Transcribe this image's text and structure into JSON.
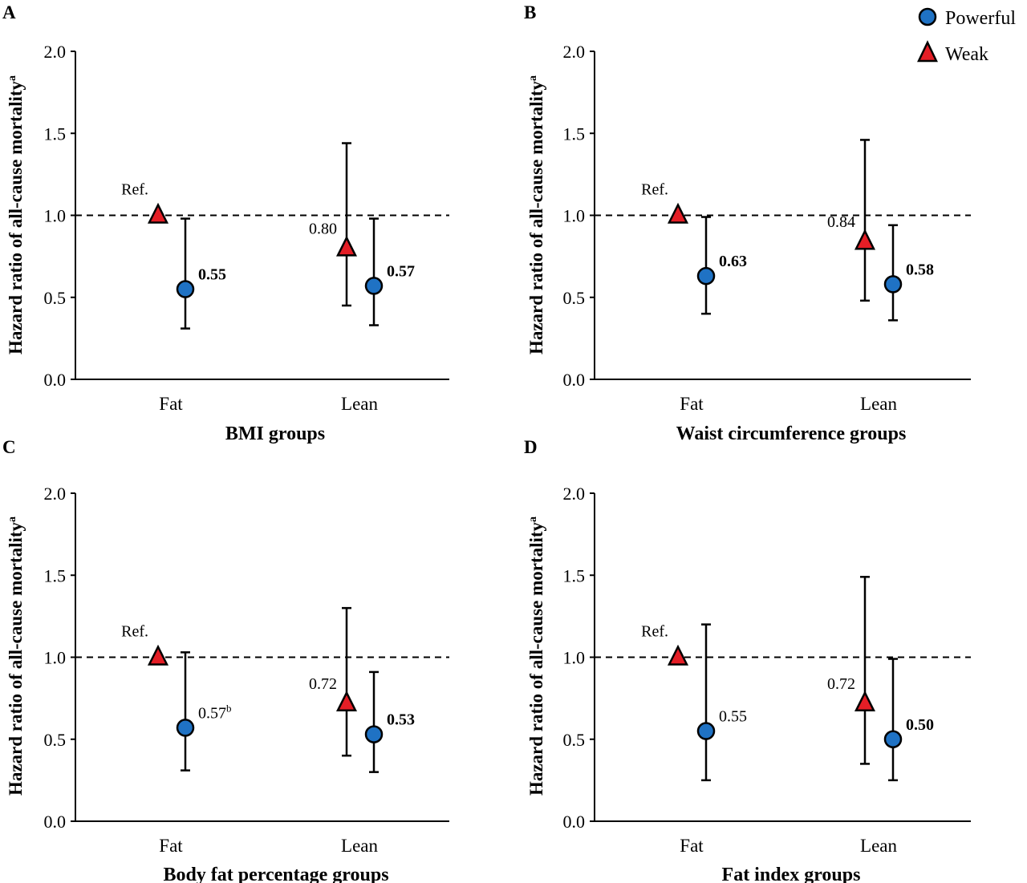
{
  "legend": [
    {
      "name": "Powerful",
      "marker": "circle",
      "color": "#1f72c4"
    },
    {
      "name": "Weak",
      "marker": "triangle",
      "color": "#e41e26"
    }
  ],
  "reference_label": "Ref.",
  "colors": {
    "powerful": "#1f72c4",
    "weak": "#e41e26",
    "stroke": "#000000"
  },
  "chart_data": [
    {
      "panel": "A",
      "type": "scatter",
      "xlabel": "BMI groups",
      "ylabel": "Hazard ratio of all-cause mortality",
      "ylabel_superscript": "a",
      "ylim": [
        0,
        2
      ],
      "yticks": [
        "0.0",
        "0.5",
        "1.0",
        "1.5",
        "2.0"
      ],
      "categories": [
        "Fat",
        "Lean"
      ],
      "reference_line": 1.0,
      "series": [
        {
          "name": "Weak",
          "points": [
            {
              "category": "Fat",
              "value": 1.0,
              "lower": null,
              "upper": null,
              "label": "Ref.",
              "bold": false
            },
            {
              "category": "Lean",
              "value": 0.8,
              "lower": 0.45,
              "upper": 1.44,
              "label": "0.80",
              "bold": false
            }
          ]
        },
        {
          "name": "Powerful",
          "points": [
            {
              "category": "Fat",
              "value": 0.55,
              "lower": 0.31,
              "upper": 0.98,
              "label": "0.55",
              "bold": true
            },
            {
              "category": "Lean",
              "value": 0.57,
              "lower": 0.33,
              "upper": 0.98,
              "label": "0.57",
              "bold": true
            }
          ]
        }
      ]
    },
    {
      "panel": "B",
      "type": "scatter",
      "xlabel": "Waist circumference groups",
      "ylabel": "Hazard ratio of all-cause mortality",
      "ylabel_superscript": "a",
      "ylim": [
        0,
        2
      ],
      "yticks": [
        "0.0",
        "0.5",
        "1.0",
        "1.5",
        "2.0"
      ],
      "categories": [
        "Fat",
        "Lean"
      ],
      "reference_line": 1.0,
      "series": [
        {
          "name": "Weak",
          "points": [
            {
              "category": "Fat",
              "value": 1.0,
              "lower": null,
              "upper": null,
              "label": "Ref.",
              "bold": false
            },
            {
              "category": "Lean",
              "value": 0.84,
              "lower": 0.48,
              "upper": 1.46,
              "label": "0.84",
              "bold": false
            }
          ]
        },
        {
          "name": "Powerful",
          "points": [
            {
              "category": "Fat",
              "value": 0.63,
              "lower": 0.4,
              "upper": 0.99,
              "label": "0.63",
              "bold": true
            },
            {
              "category": "Lean",
              "value": 0.58,
              "lower": 0.36,
              "upper": 0.94,
              "label": "0.58",
              "bold": true
            }
          ]
        }
      ]
    },
    {
      "panel": "C",
      "type": "scatter",
      "xlabel": "Body fat percentage groups",
      "ylabel": "Hazard ratio of all-cause mortality",
      "ylabel_superscript": "a",
      "ylim": [
        0,
        2
      ],
      "yticks": [
        "0.0",
        "0.5",
        "1.0",
        "1.5",
        "2.0"
      ],
      "categories": [
        "Fat",
        "Lean"
      ],
      "reference_line": 1.0,
      "series": [
        {
          "name": "Weak",
          "points": [
            {
              "category": "Fat",
              "value": 1.0,
              "lower": null,
              "upper": null,
              "label": "Ref.",
              "bold": false
            },
            {
              "category": "Lean",
              "value": 0.72,
              "lower": 0.4,
              "upper": 1.3,
              "label": "0.72",
              "bold": false
            }
          ]
        },
        {
          "name": "Powerful",
          "points": [
            {
              "category": "Fat",
              "value": 0.57,
              "lower": 0.31,
              "upper": 1.03,
              "label": "0.57",
              "label_superscript": "b",
              "bold": false
            },
            {
              "category": "Lean",
              "value": 0.53,
              "lower": 0.3,
              "upper": 0.91,
              "label": "0.53",
              "bold": true
            }
          ]
        }
      ]
    },
    {
      "panel": "D",
      "type": "scatter",
      "xlabel": "Fat index groups",
      "ylabel": "Hazard ratio of all-cause mortality",
      "ylabel_superscript": "a",
      "ylim": [
        0,
        2
      ],
      "yticks": [
        "0.0",
        "0.5",
        "1.0",
        "1.5",
        "2.0"
      ],
      "categories": [
        "Fat",
        "Lean"
      ],
      "reference_line": 1.0,
      "series": [
        {
          "name": "Weak",
          "points": [
            {
              "category": "Fat",
              "value": 1.0,
              "lower": null,
              "upper": null,
              "label": "Ref.",
              "bold": false
            },
            {
              "category": "Lean",
              "value": 0.72,
              "lower": 0.35,
              "upper": 1.49,
              "label": "0.72",
              "bold": false
            }
          ]
        },
        {
          "name": "Powerful",
          "points": [
            {
              "category": "Fat",
              "value": 0.55,
              "lower": 0.25,
              "upper": 1.2,
              "label": "0.55",
              "bold": false
            },
            {
              "category": "Lean",
              "value": 0.5,
              "lower": 0.25,
              "upper": 0.99,
              "label": "0.50",
              "bold": true
            }
          ]
        }
      ]
    }
  ]
}
